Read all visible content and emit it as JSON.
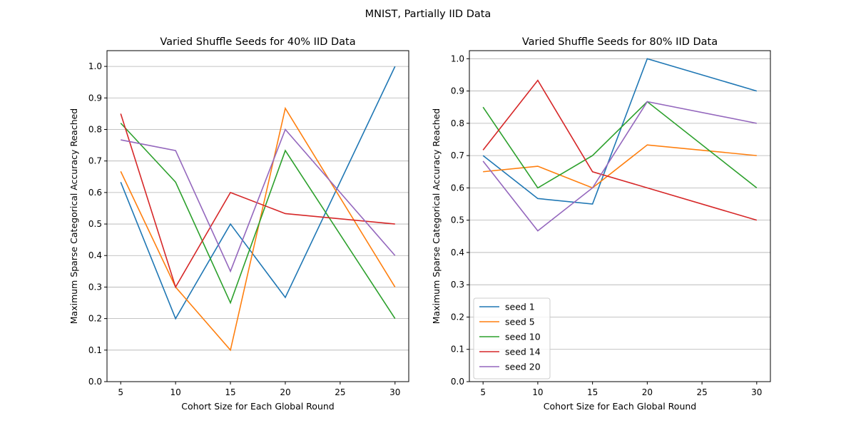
{
  "figure": {
    "suptitle": "MNIST, Partially IID Data"
  },
  "chart_data": [
    {
      "type": "line",
      "title": "Varied Shuffle Seeds for 40% IID Data",
      "xlabel": "Cohort Size for Each Global Round",
      "ylabel": "Maximum Sparse Categorical Accuracy Reached",
      "x": [
        5,
        10,
        15,
        20,
        30
      ],
      "xlim": [
        3.75,
        31.25
      ],
      "ylim": [
        0,
        1.05
      ],
      "xticks": [
        5,
        10,
        15,
        20,
        25,
        30
      ],
      "yticks": [
        0.0,
        0.1,
        0.2,
        0.3,
        0.4,
        0.5,
        0.6,
        0.7,
        0.8,
        0.9,
        1.0
      ],
      "grid": "horizontal",
      "legend": "none",
      "series": [
        {
          "name": "seed 1",
          "color": "#1f77b4",
          "values": [
            0.633,
            0.2,
            0.5,
            0.267,
            1.0
          ]
        },
        {
          "name": "seed 5",
          "color": "#ff7f0e",
          "values": [
            0.667,
            0.3,
            0.1,
            0.867,
            0.3
          ]
        },
        {
          "name": "seed 10",
          "color": "#2ca02c",
          "values": [
            0.82,
            0.633,
            0.25,
            0.733,
            0.2
          ]
        },
        {
          "name": "seed 14",
          "color": "#d62728",
          "values": [
            0.85,
            0.3,
            0.6,
            0.533,
            0.5
          ]
        },
        {
          "name": "seed 20",
          "color": "#9467bd",
          "values": [
            0.767,
            0.733,
            0.35,
            0.8,
            0.4
          ]
        }
      ]
    },
    {
      "type": "line",
      "title": "Varied Shuffle Seeds for 80% IID Data",
      "xlabel": "Cohort Size for Each Global Round",
      "ylabel": "Maximum Sparse Categorical Accuracy Reached",
      "x": [
        5,
        10,
        15,
        20,
        30
      ],
      "xlim": [
        3.75,
        31.25
      ],
      "ylim": [
        0,
        1.025
      ],
      "xticks": [
        5,
        10,
        15,
        20,
        25,
        30
      ],
      "yticks": [
        0.0,
        0.1,
        0.2,
        0.3,
        0.4,
        0.5,
        0.6,
        0.7,
        0.8,
        0.9,
        1.0
      ],
      "grid": "horizontal",
      "legend": "lower-left",
      "series": [
        {
          "name": "seed 1",
          "color": "#1f77b4",
          "values": [
            0.7,
            0.567,
            0.55,
            1.0,
            0.9
          ]
        },
        {
          "name": "seed 5",
          "color": "#ff7f0e",
          "values": [
            0.65,
            0.667,
            0.6,
            0.733,
            0.7
          ]
        },
        {
          "name": "seed 10",
          "color": "#2ca02c",
          "values": [
            0.85,
            0.6,
            0.7,
            0.867,
            0.6
          ]
        },
        {
          "name": "seed 14",
          "color": "#d62728",
          "values": [
            0.717,
            0.933,
            0.65,
            0.6,
            0.5
          ]
        },
        {
          "name": "seed 20",
          "color": "#9467bd",
          "values": [
            0.683,
            0.467,
            0.6,
            0.867,
            0.8
          ]
        }
      ]
    }
  ]
}
